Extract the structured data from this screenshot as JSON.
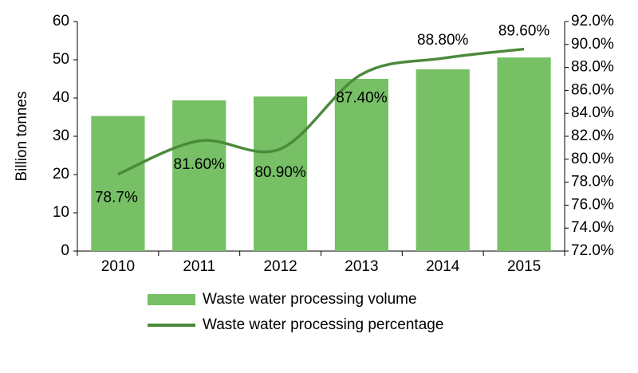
{
  "chart_data": {
    "type": "bar-line",
    "categories": [
      "2010",
      "2011",
      "2012",
      "2013",
      "2014",
      "2015"
    ],
    "y_label": "Billion tonnes",
    "series": [
      {
        "name": "Waste water processing volume",
        "type": "bar",
        "color": "#77c066",
        "values": [
          35.3,
          39.4,
          40.4,
          45,
          47.5,
          50.6
        ]
      },
      {
        "name": "Waste water processing percentage",
        "type": "line",
        "axis": "y2",
        "color": "#4b8a3b",
        "values": [
          78.7,
          81.6,
          80.9,
          87.4,
          88.8,
          89.6
        ],
        "value_labels": [
          "78.7%",
          "81.60%",
          "80.90%",
          "87.40%",
          "88.80%",
          "89.60%"
        ]
      }
    ],
    "ylim": [
      0,
      60
    ],
    "yticks": [
      0,
      10,
      20,
      30,
      40,
      50,
      60
    ],
    "y2lim": [
      72,
      92
    ],
    "y2ticks": [
      {
        "value": 72,
        "label": "72.0%"
      },
      {
        "value": 74,
        "label": "74.0%"
      },
      {
        "value": 76,
        "label": "76.0%"
      },
      {
        "value": 78,
        "label": "78.0%"
      },
      {
        "value": 80,
        "label": "80.0%"
      },
      {
        "value": 82,
        "label": "82.0%"
      },
      {
        "value": 84,
        "label": "84.0%"
      },
      {
        "value": 86,
        "label": "86.0%"
      },
      {
        "value": 88,
        "label": "88.0%"
      },
      {
        "value": 90,
        "label": "90.0%"
      },
      {
        "value": 92,
        "label": "92.0%"
      }
    ],
    "grid": false
  }
}
